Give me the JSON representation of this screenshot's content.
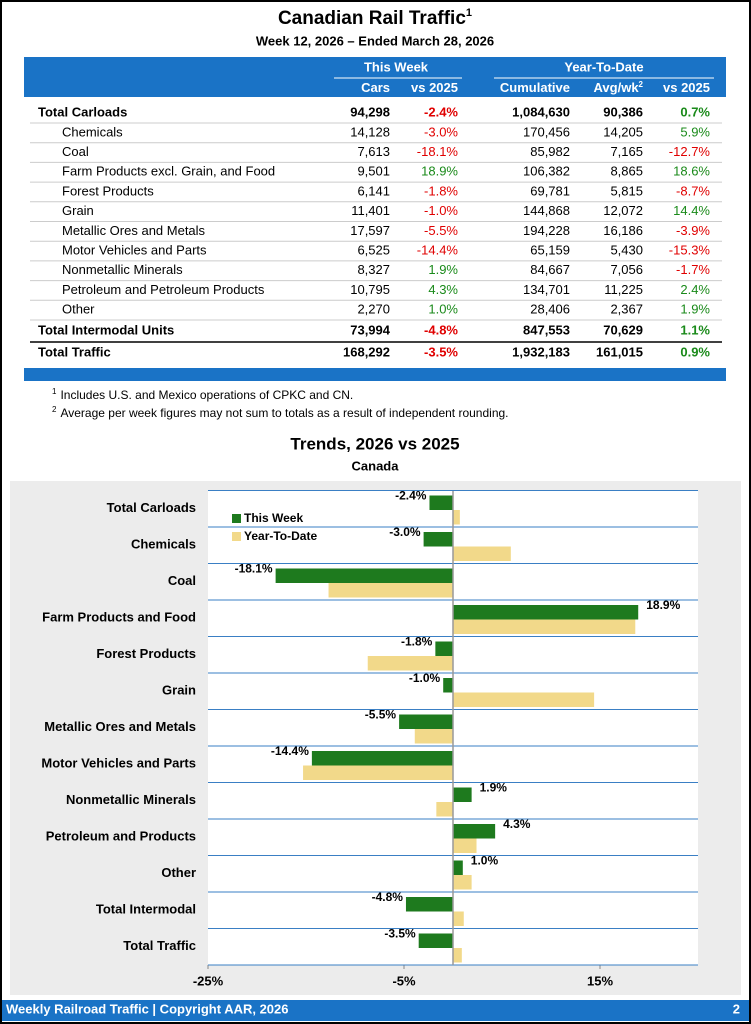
{
  "header": {
    "title": "Canadian Rail Traffic",
    "title_note": "1",
    "subtitle": "Week 12, 2026 – Ended March 28, 2026"
  },
  "table": {
    "group_headers": [
      "This Week",
      "Year-To-Date"
    ],
    "columns": [
      "Cars",
      "vs 2025",
      "Cumulative",
      "Avg/wk",
      "vs 2025"
    ],
    "avg_note": "2",
    "rows": [
      {
        "level": "total",
        "cells": [
          "Total Carloads",
          "94,298",
          "-2.4%",
          "1,084,630",
          "90,386",
          "0.7%"
        ]
      },
      {
        "level": "item",
        "cells": [
          "Chemicals",
          "14,128",
          "-3.0%",
          "170,456",
          "14,205",
          "5.9%"
        ]
      },
      {
        "level": "item",
        "cells": [
          "Coal",
          "7,613",
          "-18.1%",
          "85,982",
          "7,165",
          "-12.7%"
        ]
      },
      {
        "level": "item",
        "cells": [
          "Farm Products excl. Grain, and Food",
          "9,501",
          "18.9%",
          "106,382",
          "8,865",
          "18.6%"
        ]
      },
      {
        "level": "item",
        "cells": [
          "Forest Products",
          "6,141",
          "-1.8%",
          "69,781",
          "5,815",
          "-8.7%"
        ]
      },
      {
        "level": "item",
        "cells": [
          "Grain",
          "11,401",
          "-1.0%",
          "144,868",
          "12,072",
          "14.4%"
        ]
      },
      {
        "level": "item",
        "cells": [
          "Metallic Ores and Metals",
          "17,597",
          "-5.5%",
          "194,228",
          "16,186",
          "-3.9%"
        ]
      },
      {
        "level": "item",
        "cells": [
          "Motor Vehicles and Parts",
          "6,525",
          "-14.4%",
          "65,159",
          "5,430",
          "-15.3%"
        ]
      },
      {
        "level": "item",
        "cells": [
          "Nonmetallic Minerals",
          "8,327",
          "1.9%",
          "84,667",
          "7,056",
          "-1.7%"
        ]
      },
      {
        "level": "item",
        "cells": [
          "Petroleum and Petroleum Products",
          "10,795",
          "4.3%",
          "134,701",
          "11,225",
          "2.4%"
        ]
      },
      {
        "level": "item",
        "cells": [
          "Other",
          "2,270",
          "1.0%",
          "28,406",
          "2,367",
          "1.9%"
        ]
      },
      {
        "level": "total",
        "cells": [
          "Total Intermodal Units",
          "73,994",
          "-4.8%",
          "847,553",
          "70,629",
          "1.1%"
        ]
      },
      {
        "level": "total",
        "cells": [
          "Total Traffic",
          "168,292",
          "-3.5%",
          "1,932,183",
          "161,015",
          "0.9%"
        ]
      }
    ]
  },
  "footnotes": [
    {
      "mark": "1",
      "text": "Includes U.S. and Mexico operations of CPKC and CN."
    },
    {
      "mark": "2",
      "text": "Average per week figures may not sum to totals as a result of independent rounding."
    }
  ],
  "chart_data": {
    "type": "bar",
    "orientation": "horizontal",
    "title": "Trends, 2026 vs 2025",
    "subtitle": "Canada",
    "categories": [
      "Total Carloads",
      "Chemicals",
      "Coal",
      "Farm Products and Food",
      "Forest Products",
      "Grain",
      "Metallic Ores and Metals",
      "Motor Vehicles and Parts",
      "Nonmetallic Minerals",
      "Petroleum and Products",
      "Other",
      "Total Intermodal",
      "Total Traffic"
    ],
    "series": [
      {
        "name": "This Week",
        "color": "#1e7a1e",
        "values": [
          -2.4,
          -3.0,
          -18.1,
          18.9,
          -1.8,
          -1.0,
          -5.5,
          -14.4,
          1.9,
          4.3,
          1.0,
          -4.8,
          -3.5
        ],
        "value_labels": [
          "-2.4%",
          "-3.0%",
          "-18.1%",
          "18.9%",
          "-1.8%",
          "-1.0%",
          "-5.5%",
          "-14.4%",
          "1.9%",
          "4.3%",
          "1.0%",
          "-4.8%",
          "-3.5%"
        ]
      },
      {
        "name": "Year-To-Date",
        "color": "#f2d98a",
        "values": [
          0.7,
          5.9,
          -12.7,
          18.6,
          -8.7,
          14.4,
          -3.9,
          -15.3,
          -1.7,
          2.4,
          1.9,
          1.1,
          0.9
        ]
      }
    ],
    "xlim": [
      -25,
      25
    ],
    "xticks": [
      {
        "value": -25,
        "label": "-25%"
      },
      {
        "value": -5,
        "label": "-5%"
      },
      {
        "value": 15,
        "label": "15%"
      }
    ]
  },
  "footer": {
    "text": "Weekly Railroad Traffic | Copyright AAR, 2026",
    "page": "2"
  }
}
